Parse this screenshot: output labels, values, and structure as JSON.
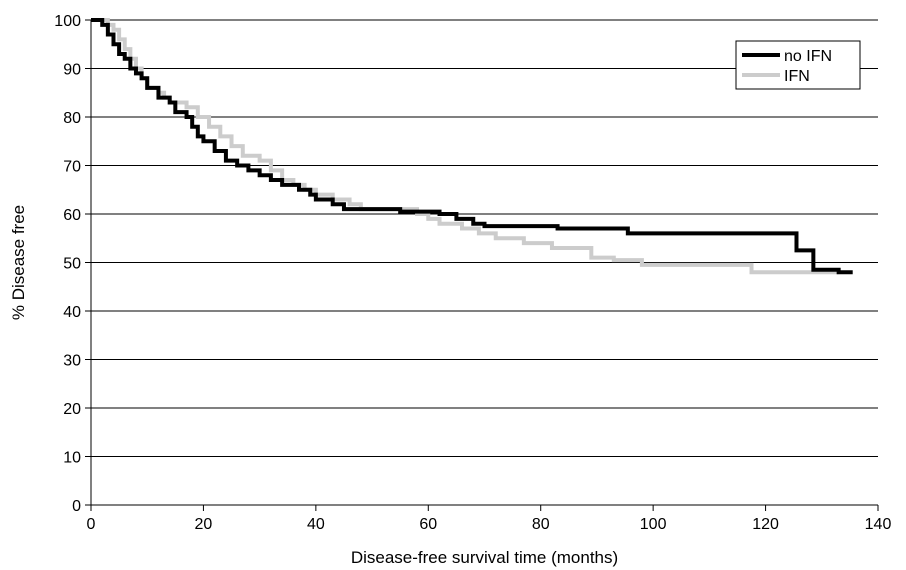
{
  "chart_data": {
    "type": "line",
    "xlabel": "Disease-free survival time (months)",
    "ylabel": "% Disease free",
    "xlim": [
      0,
      140
    ],
    "ylim": [
      0,
      100
    ],
    "x_ticks": [
      "0",
      "20",
      "40",
      "60",
      "80",
      "100",
      "120",
      "140"
    ],
    "y_ticks": [
      "0",
      "10",
      "20",
      "30",
      "40",
      "50",
      "60",
      "70",
      "80",
      "90",
      "100"
    ],
    "grid": "horizontal",
    "legend": "top-right",
    "step": true,
    "series": [
      {
        "name": "no IFN",
        "color": "#000000",
        "points": [
          [
            0,
            100
          ],
          [
            2,
            99
          ],
          [
            3,
            97
          ],
          [
            4,
            95
          ],
          [
            5,
            93
          ],
          [
            6,
            92
          ],
          [
            7,
            90
          ],
          [
            8,
            89
          ],
          [
            9,
            88
          ],
          [
            10,
            86
          ],
          [
            12,
            84
          ],
          [
            14,
            83
          ],
          [
            15,
            81
          ],
          [
            17,
            80
          ],
          [
            18,
            78
          ],
          [
            19,
            76
          ],
          [
            20,
            75
          ],
          [
            22,
            73
          ],
          [
            24,
            71
          ],
          [
            26,
            70
          ],
          [
            28,
            69
          ],
          [
            30,
            68
          ],
          [
            32,
            67
          ],
          [
            34,
            66
          ],
          [
            37,
            65
          ],
          [
            39,
            64
          ],
          [
            40,
            63
          ],
          [
            43,
            62
          ],
          [
            45,
            61
          ],
          [
            55,
            60.5
          ],
          [
            62,
            60
          ],
          [
            65,
            59
          ],
          [
            68,
            58
          ],
          [
            70,
            57.5
          ],
          [
            83,
            57
          ],
          [
            95.5,
            56
          ],
          [
            125.5,
            52.5
          ],
          [
            128.5,
            48.5
          ],
          [
            133,
            48
          ],
          [
            135.5,
            48
          ]
        ]
      },
      {
        "name": "IFN",
        "color": "#cccccc",
        "points": [
          [
            0,
            100
          ],
          [
            3,
            99
          ],
          [
            4,
            98
          ],
          [
            5,
            96
          ],
          [
            6,
            94
          ],
          [
            7,
            92
          ],
          [
            8,
            90
          ],
          [
            9,
            88
          ],
          [
            10,
            86
          ],
          [
            12,
            85
          ],
          [
            13,
            84
          ],
          [
            14,
            83
          ],
          [
            17,
            82
          ],
          [
            19,
            80
          ],
          [
            21,
            78
          ],
          [
            23,
            76
          ],
          [
            25,
            74
          ],
          [
            27,
            72
          ],
          [
            30,
            71
          ],
          [
            32,
            69
          ],
          [
            34,
            67
          ],
          [
            36,
            66
          ],
          [
            38,
            65
          ],
          [
            40,
            64
          ],
          [
            43,
            63
          ],
          [
            46,
            62
          ],
          [
            48,
            61
          ],
          [
            58,
            60
          ],
          [
            60,
            59
          ],
          [
            62,
            58
          ],
          [
            66,
            57
          ],
          [
            69,
            56
          ],
          [
            72,
            55
          ],
          [
            77,
            54
          ],
          [
            82,
            53
          ],
          [
            89,
            51
          ],
          [
            93,
            50.5
          ],
          [
            98,
            49.5
          ],
          [
            117.5,
            48
          ],
          [
            133,
            48
          ]
        ]
      }
    ]
  }
}
